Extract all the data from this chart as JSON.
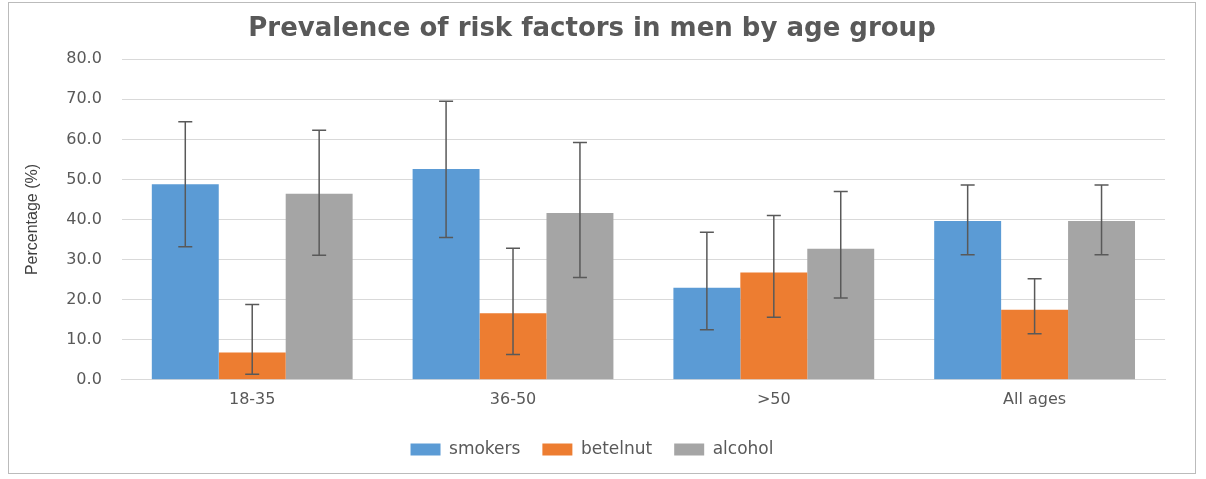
{
  "chart_data": {
    "type": "bar",
    "title": "Prevalence of risk factors in men by age group",
    "ylabel": "Percentage (%)",
    "categories": [
      "18-35",
      "36-50",
      ">50",
      "All ages"
    ],
    "series": [
      {
        "name": "smokers",
        "color": "#5b9bd5",
        "values": [
          48.8,
          52.6,
          23.0,
          39.6
        ],
        "errors": [
          [
            33.2,
            64.4
          ],
          [
            35.5,
            69.5
          ],
          [
            12.5,
            36.8
          ],
          [
            31.2,
            48.6
          ]
        ]
      },
      {
        "name": "betelnut",
        "color": "#ed7d31",
        "values": [
          6.8,
          16.6,
          26.8,
          17.5
        ],
        "errors": [
          [
            1.4,
            18.8
          ],
          [
            6.3,
            32.8
          ],
          [
            15.6,
            41.0
          ],
          [
            11.5,
            25.2
          ]
        ]
      },
      {
        "name": "alcohol",
        "color": "#a5a5a5",
        "values": [
          46.4,
          41.6,
          32.7,
          39.6
        ],
        "errors": [
          [
            31.1,
            62.3
          ],
          [
            25.5,
            59.2
          ],
          [
            20.4,
            47.0
          ],
          [
            31.2,
            48.6
          ]
        ]
      }
    ],
    "ylim": [
      0,
      80
    ],
    "yticks": [
      {
        "value": 0,
        "label": "0.0"
      },
      {
        "value": 10,
        "label": "10.0"
      },
      {
        "value": 20,
        "label": "20.0"
      },
      {
        "value": 30,
        "label": "30.0"
      },
      {
        "value": 40,
        "label": "40.0"
      },
      {
        "value": 50,
        "label": "50.0"
      },
      {
        "value": 60,
        "label": "60.0"
      },
      {
        "value": 70,
        "label": "70.0"
      },
      {
        "value": 80,
        "label": "80.0"
      }
    ],
    "grid": "y",
    "legend": "bottom"
  }
}
